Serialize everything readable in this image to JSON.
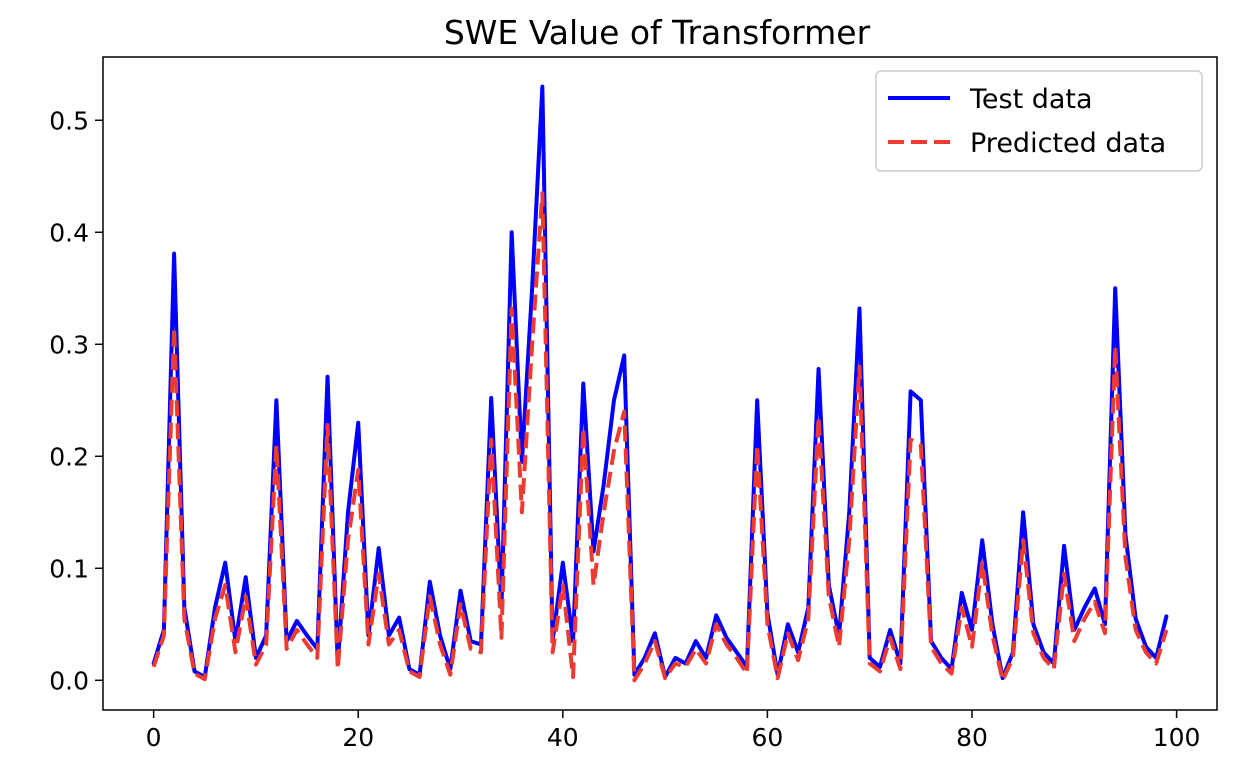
{
  "chart_data": {
    "type": "line",
    "title": "SWE Value of Transformer",
    "xlabel": "",
    "ylabel": "",
    "xlim": [
      -4.95,
      103.95
    ],
    "ylim": [
      -0.0265,
      0.5565
    ],
    "xticks": [
      0,
      20,
      40,
      60,
      80,
      100
    ],
    "yticks": [
      0.0,
      0.1,
      0.2,
      0.3,
      0.4,
      0.5
    ],
    "xtick_labels": [
      "0",
      "20",
      "40",
      "60",
      "80",
      "100"
    ],
    "ytick_labels": [
      "0.0",
      "0.1",
      "0.2",
      "0.3",
      "0.4",
      "0.5"
    ],
    "grid": false,
    "legend_position": "top-right",
    "x": [
      0,
      1,
      2,
      3,
      4,
      5,
      6,
      7,
      8,
      9,
      10,
      11,
      12,
      13,
      14,
      15,
      16,
      17,
      18,
      19,
      20,
      21,
      22,
      23,
      24,
      25,
      26,
      27,
      28,
      29,
      30,
      31,
      32,
      33,
      34,
      35,
      36,
      37,
      38,
      39,
      40,
      41,
      42,
      43,
      44,
      45,
      46,
      47,
      48,
      49,
      50,
      51,
      52,
      53,
      54,
      55,
      56,
      57,
      58,
      59,
      60,
      61,
      62,
      63,
      64,
      65,
      66,
      67,
      68,
      69,
      70,
      71,
      72,
      73,
      74,
      75,
      76,
      77,
      78,
      79,
      80,
      81,
      82,
      83,
      84,
      85,
      86,
      87,
      88,
      89,
      90,
      91,
      92,
      93,
      94,
      95,
      96,
      97,
      98,
      99
    ],
    "series": [
      {
        "name": "Test data",
        "color": "#0000ff",
        "style": "solid",
        "values": [
          0.015,
          0.045,
          0.381,
          0.065,
          0.008,
          0.003,
          0.065,
          0.105,
          0.035,
          0.092,
          0.02,
          0.04,
          0.25,
          0.035,
          0.053,
          0.04,
          0.028,
          0.271,
          0.015,
          0.15,
          0.23,
          0.04,
          0.118,
          0.04,
          0.056,
          0.01,
          0.005,
          0.088,
          0.04,
          0.01,
          0.08,
          0.035,
          0.032,
          0.252,
          0.065,
          0.4,
          0.195,
          0.35,
          0.53,
          0.035,
          0.105,
          0.035,
          0.265,
          0.115,
          0.175,
          0.25,
          0.29,
          0.005,
          0.02,
          0.042,
          0.003,
          0.02,
          0.015,
          0.035,
          0.02,
          0.058,
          0.038,
          0.025,
          0.012,
          0.25,
          0.06,
          0.005,
          0.05,
          0.025,
          0.065,
          0.278,
          0.085,
          0.04,
          0.15,
          0.332,
          0.02,
          0.012,
          0.045,
          0.015,
          0.258,
          0.25,
          0.035,
          0.02,
          0.01,
          0.078,
          0.045,
          0.125,
          0.05,
          0.002,
          0.025,
          0.15,
          0.05,
          0.025,
          0.015,
          0.12,
          0.045,
          0.065,
          0.082,
          0.05,
          0.35,
          0.13,
          0.055,
          0.03,
          0.02,
          0.057
        ]
      },
      {
        "name": "Predicted data",
        "color": "#ee3b32",
        "style": "dashed",
        "values": [
          0.012,
          0.04,
          0.315,
          0.055,
          0.006,
          0.001,
          0.055,
          0.085,
          0.025,
          0.075,
          0.014,
          0.032,
          0.21,
          0.028,
          0.045,
          0.032,
          0.02,
          0.228,
          0.01,
          0.125,
          0.188,
          0.032,
          0.095,
          0.032,
          0.045,
          0.008,
          0.003,
          0.075,
          0.032,
          0.005,
          0.068,
          0.028,
          0.025,
          0.215,
          0.038,
          0.332,
          0.15,
          0.3,
          0.435,
          0.025,
          0.085,
          0.003,
          0.225,
          0.085,
          0.15,
          0.205,
          0.24,
          0.0,
          0.015,
          0.035,
          0.002,
          0.015,
          0.012,
          0.028,
          0.015,
          0.05,
          0.032,
          0.02,
          0.006,
          0.21,
          0.05,
          0.002,
          0.042,
          0.018,
          0.055,
          0.235,
          0.075,
          0.03,
          0.125,
          0.28,
          0.015,
          0.008,
          0.038,
          0.01,
          0.215,
          0.21,
          0.03,
          0.015,
          0.006,
          0.065,
          0.03,
          0.105,
          0.04,
          0.0,
          0.02,
          0.125,
          0.042,
          0.02,
          0.01,
          0.095,
          0.035,
          0.055,
          0.07,
          0.042,
          0.298,
          0.11,
          0.045,
          0.025,
          0.015,
          0.045
        ]
      }
    ]
  }
}
